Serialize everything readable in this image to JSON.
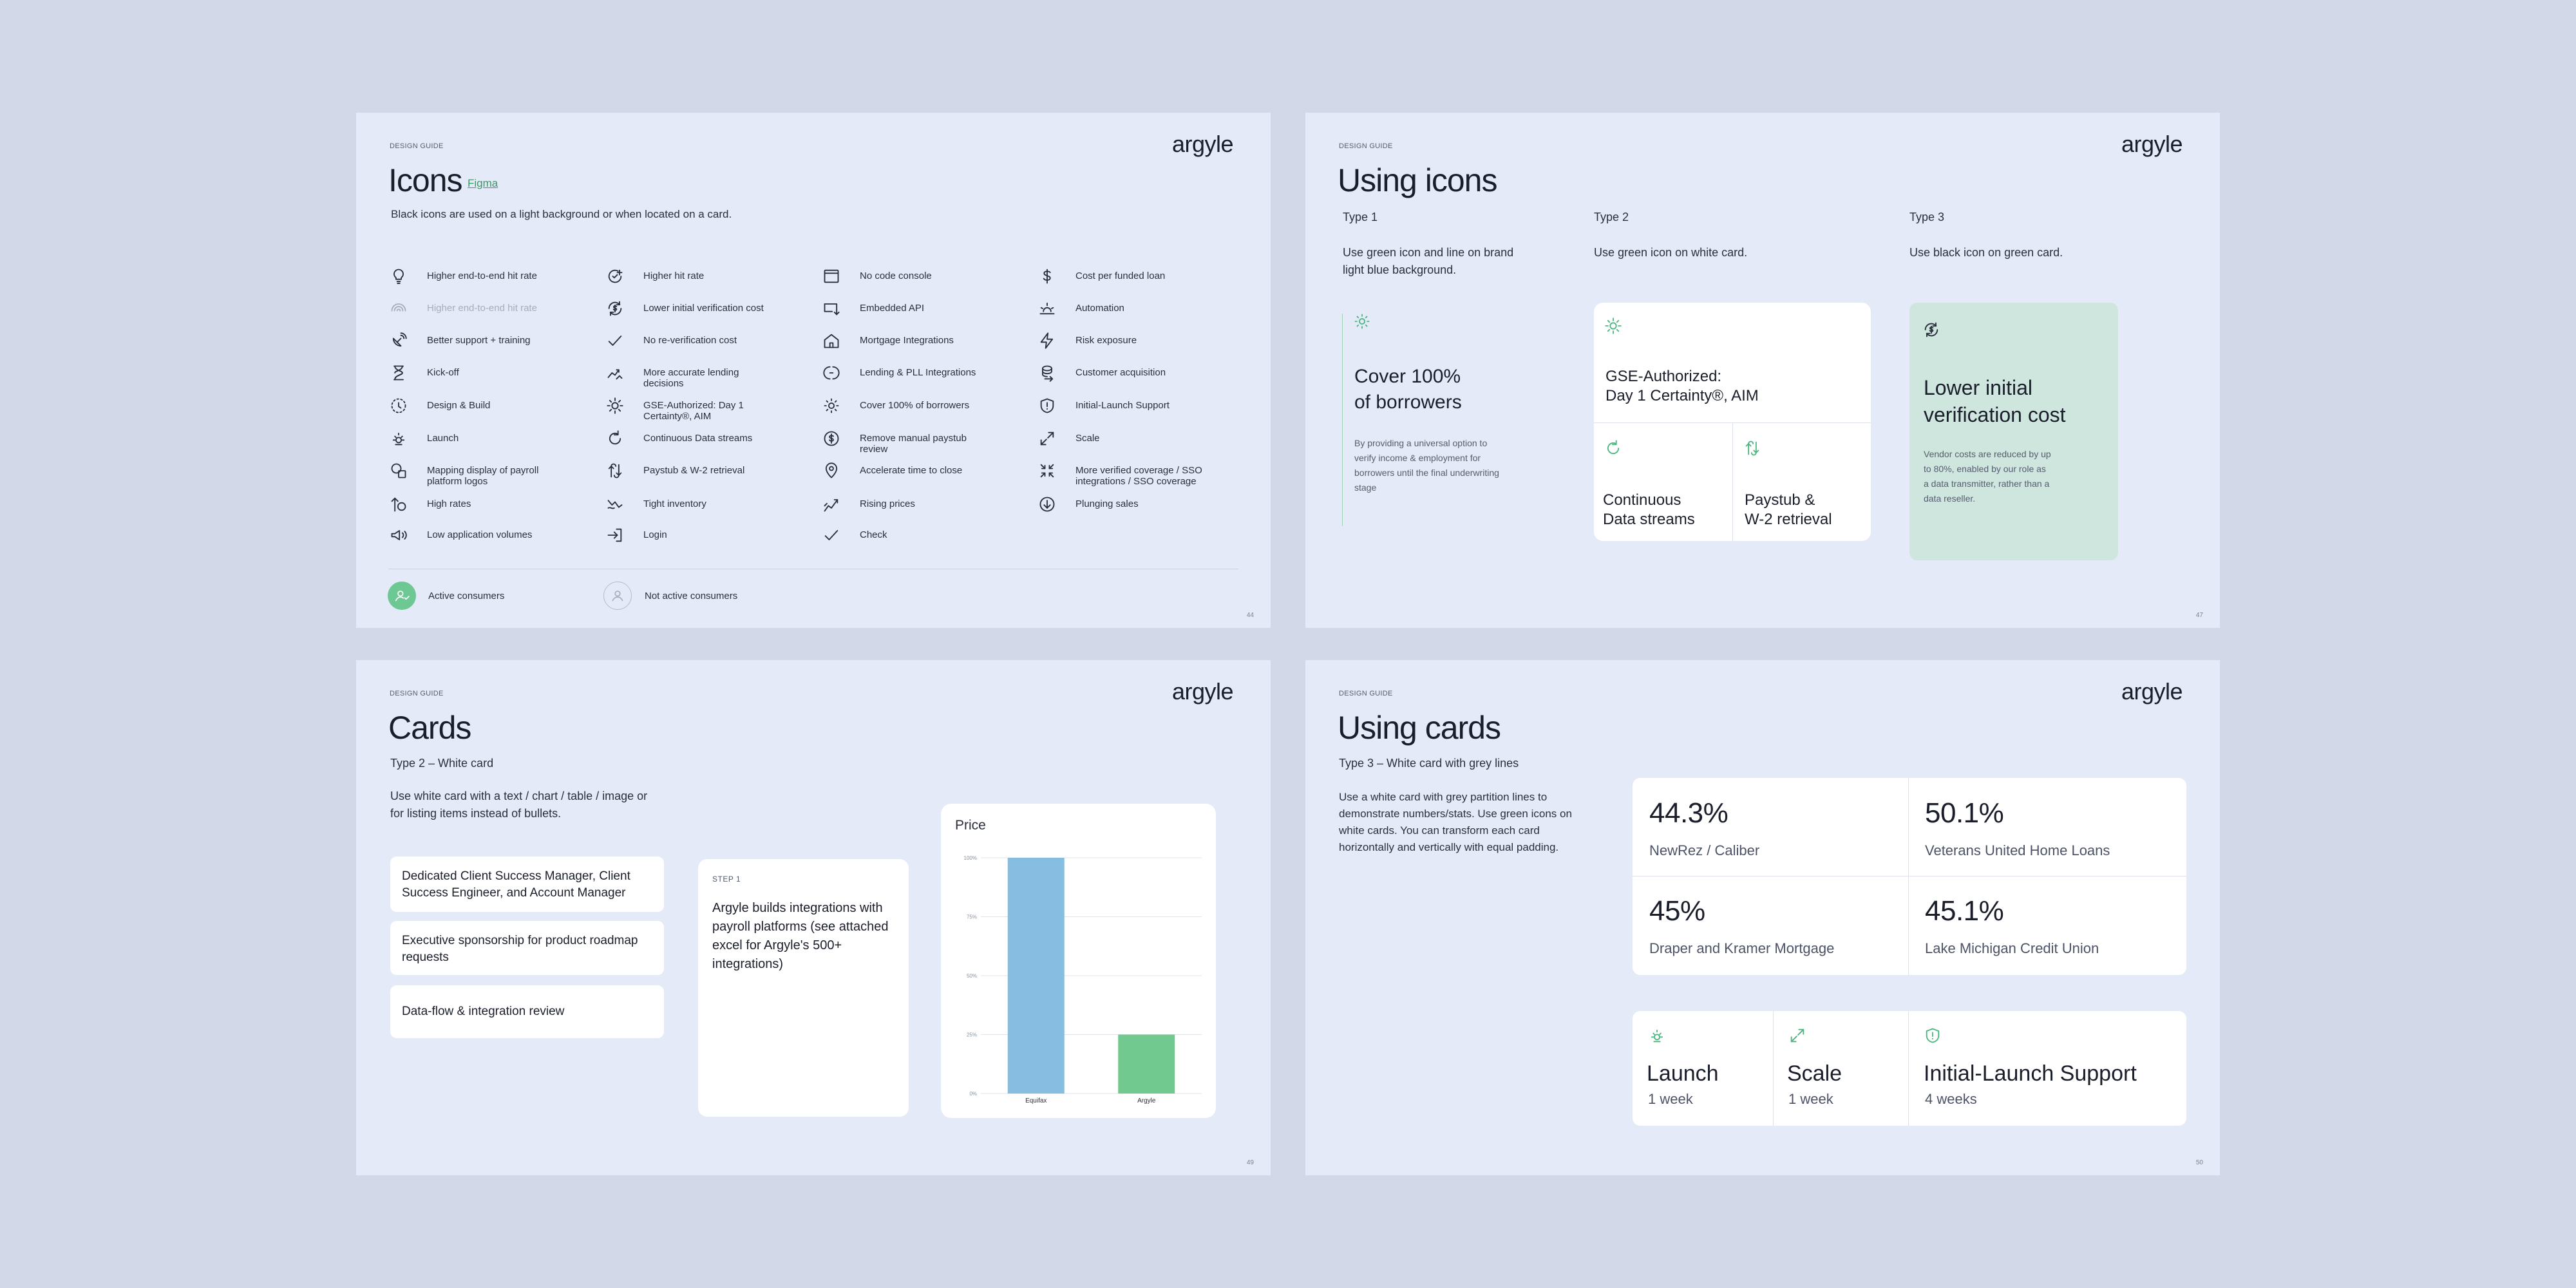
{
  "brand": "argyle",
  "eyebrow": "DESIGN GUIDE",
  "slide1": {
    "title": "Icons",
    "figma_link": "Figma",
    "subtitle": "Black icons are used on a light background or when located on a card.",
    "icons": [
      {
        "label": "Higher end-to-end hit rate",
        "icon": "lightbulb-icon"
      },
      {
        "label": "Higher end-to-end hit rate",
        "icon": "signal-arc-icon"
      },
      {
        "label": "Better support + training",
        "icon": "satellite-dish-icon"
      },
      {
        "label": "Kick-off",
        "icon": "hourglass-icon"
      },
      {
        "label": "Design & Build",
        "icon": "dotted-circle-icon"
      },
      {
        "label": "Launch",
        "icon": "sun-rise-icon"
      },
      {
        "label": "Mapping display of payroll platform logos",
        "icon": "shapes-icon"
      },
      {
        "label": "High rates",
        "icon": "arrow-up-circle-icon"
      },
      {
        "label": "Low application volumes",
        "icon": "megaphone-icon"
      },
      {
        "label": "Higher hit rate",
        "icon": "circle-plus-icon"
      },
      {
        "label": "Lower initial verification cost",
        "icon": "dollar-refresh-icon"
      },
      {
        "label": "No re-verification cost",
        "icon": "checkmark-icon"
      },
      {
        "label": "More accurate lending decisions",
        "icon": "chart-trend-icon"
      },
      {
        "label": "GSE-Authorized: Day 1 Certainty®, AIM",
        "icon": "sun-badge-icon"
      },
      {
        "label": "Continuous Data streams",
        "icon": "refresh-icon"
      },
      {
        "label": "Paystub & W-2 retrieval",
        "icon": "transfer-icon"
      },
      {
        "label": "Tight inventory",
        "icon": "trend-zigzag-icon"
      },
      {
        "label": "Login",
        "icon": "login-icon"
      },
      {
        "label": "No code console",
        "icon": "window-icon"
      },
      {
        "label": "Embedded API",
        "icon": "api-icon"
      },
      {
        "label": "Mortgage Integrations",
        "icon": "house-icon"
      },
      {
        "label": "Lending & PLL Integrations",
        "icon": "link-circle-icon"
      },
      {
        "label": "Cover 100% of borrowers",
        "icon": "sun-icon"
      },
      {
        "label": "Remove manual paystub review",
        "icon": "dollar-circle-icon"
      },
      {
        "label": "Accelerate time to close",
        "icon": "location-pin-icon"
      },
      {
        "label": "Rising prices",
        "icon": "rising-chart-icon"
      },
      {
        "label": "Check",
        "icon": "check-icon"
      },
      {
        "label": "Cost per funded loan",
        "icon": "dollar-icon"
      },
      {
        "label": "Automation",
        "icon": "sunrise-lines-icon"
      },
      {
        "label": "Risk exposure",
        "icon": "lightning-icon"
      },
      {
        "label": "Customer acquisition",
        "icon": "coin-stack-icon"
      },
      {
        "label": "Initial-Launch Support",
        "icon": "shield-icon"
      },
      {
        "label": "Scale",
        "icon": "expand-icon"
      },
      {
        "label": "More verified coverage / SSO integrations / SSO coverage",
        "icon": "collapse-arrows-icon"
      },
      {
        "label": "Plunging sales",
        "icon": "arrow-down-circle-icon"
      }
    ],
    "status": {
      "active": "Active consumers",
      "inactive": "Not active consumers"
    },
    "page": "44"
  },
  "slide2": {
    "title": "Using icons",
    "types": [
      {
        "label": "Type 1",
        "desc": "Use green icon and line on brand light blue background."
      },
      {
        "label": "Type 2",
        "desc": "Use green icon on white card."
      },
      {
        "label": "Type 3",
        "desc": "Use black icon on green card."
      }
    ],
    "type1_heading_l1": "Cover 100%",
    "type1_heading_l2": "of borrowers",
    "type1_body": "By providing a universal option to verify income & employment for borrowers until the final underwriting stage",
    "type2_top_l1": "GSE-Authorized:",
    "type2_top_l2": "Day 1 Certainty®, AIM",
    "type2_left_l1": "Continuous",
    "type2_left_l2": "Data streams",
    "type2_right_l1": "Paystub &",
    "type2_right_l2": "W-2 retrieval",
    "type3_heading_l1": "Lower initial",
    "type3_heading_l2": "verification cost",
    "type3_body": "Vendor costs are reduced by up to 80%, enabled by our role as a data transmitter, rather than a data reseller.",
    "page": "47"
  },
  "slide3": {
    "title": "Cards",
    "subtitle": "Type 2 – White card",
    "desc": "Use white card with a text / chart / table / image or for listing items instead of bullets.",
    "list": [
      "Dedicated Client Success Manager, Client Success Engineer, and Account Manager",
      "Executive sponsorship for product roadmap requests",
      "Data-flow & integration review"
    ],
    "step_label": "STEP 1",
    "step_text": "Argyle builds integrations with payroll platforms (see attached excel for Argyle's 500+ integrations)",
    "page": "49"
  },
  "chart_data": {
    "type": "bar",
    "title": "Price",
    "categories": [
      "Equifax",
      "Argyle"
    ],
    "values": [
      100,
      25
    ],
    "colors": [
      "#86bde0",
      "#72c990"
    ],
    "yticks": [
      "100%",
      "75%",
      "50%",
      "25%",
      "0%"
    ],
    "ylim": [
      0,
      100
    ],
    "grid": true,
    "xlabel": "",
    "ylabel": ""
  },
  "slide4": {
    "title": "Using cards",
    "subtitle": "Type 3 – White card with grey lines",
    "desc": "Use a white card with grey partition lines to demonstrate numbers/stats. Use green icons on white cards. You can transform each card horizontally and vertically with equal padding.",
    "stats": [
      {
        "value": "44.3%",
        "label": "NewRez / Caliber"
      },
      {
        "value": "50.1%",
        "label": "Veterans United Home Loans"
      },
      {
        "value": "45%",
        "label": "Draper and Kramer Mortgage"
      },
      {
        "value": "45.1%",
        "label": "Lake Michigan Credit Union"
      }
    ],
    "milestones": [
      {
        "title": "Launch",
        "sub": "1 week",
        "icon": "sun-rise-icon"
      },
      {
        "title": "Scale",
        "sub": "1 week",
        "icon": "expand-icon"
      },
      {
        "title": "Initial-Launch Support",
        "sub": "4 weeks",
        "icon": "shield-icon"
      }
    ],
    "page": "50"
  },
  "colors": {
    "background": "#d3d8e8",
    "slide": "#e4eaf8",
    "green": "#4bb77e",
    "green_card": "#cfe6df",
    "bar_blue": "#86bde0",
    "bar_green": "#72c990"
  }
}
